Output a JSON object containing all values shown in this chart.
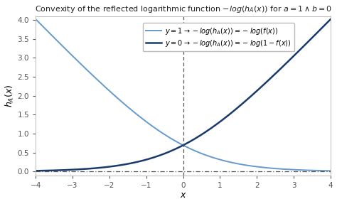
{
  "title": "Convexity of the reflected logarithmic function $-log(h_A(x))$ for $a=1\\wedge b=0$",
  "xlabel": "$x$",
  "ylabel": "$h_A(x)$",
  "xlim": [
    -4,
    4
  ],
  "ylim": [
    -0.1,
    4.1
  ],
  "color_light": "#6699cc",
  "color_dark": "#1a3a6b",
  "vline_color": "#555555",
  "hline_color": "#555555",
  "background_color": "#ffffff",
  "spine_color": "#bbbbbb",
  "tick_color": "#555555",
  "legend1": "$y=1 \\rightarrow -log(h_A(x)) = -log(f(x))$",
  "legend2": "$y=0 \\rightarrow -log(h_A(x)) = -log(1-f(x))$"
}
